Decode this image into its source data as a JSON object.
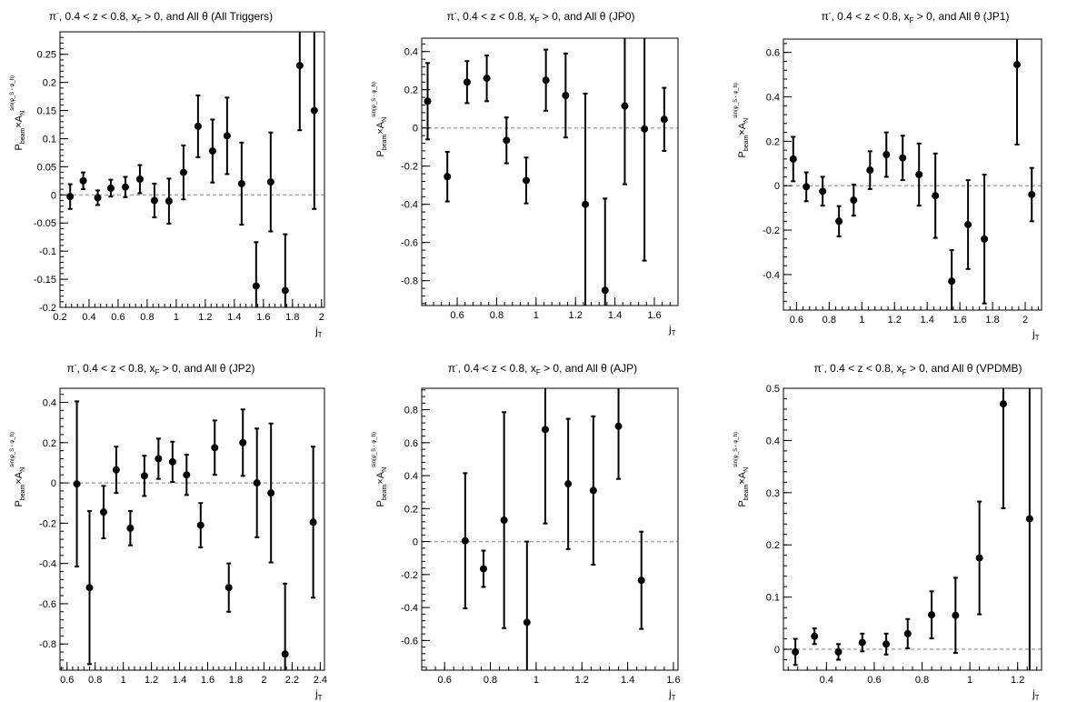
{
  "chart_data": [
    {
      "type": "scatter",
      "title": "π⁻, 0.4 < z < 0.8, x_F > 0, and All θ (All Triggers)",
      "title_parts": {
        "particle": "π",
        "sup": "-",
        "mid": ", 0.4 < z < 0.8, x",
        "sub": "F",
        "tail": " > 0, and All θ (All Triggers)"
      },
      "xlabel": {
        "main": "j",
        "sub": "T"
      },
      "ylabel": {
        "main": "P",
        "sub": "beam",
        "mid": "×A",
        "sub2": "N",
        "sup": "sin(φ_S - φ_h)"
      },
      "xlim": [
        0.2,
        2.02
      ],
      "ylim": [
        -0.2,
        0.29
      ],
      "xticks": [
        0.2,
        0.4,
        0.6,
        0.8,
        1,
        1.2,
        1.4,
        1.6,
        1.8,
        2
      ],
      "xtick_labels": [
        "0.2",
        "0.4",
        "0.6",
        "0.8",
        "1",
        "1.2",
        "1.4",
        "1.6",
        "1.8",
        "2"
      ],
      "yticks": [
        -0.2,
        -0.15,
        -0.1,
        -0.05,
        0,
        0.05,
        0.1,
        0.15,
        0.2,
        0.25
      ],
      "ytick_labels": [
        "-0.2",
        "-0.15",
        "-0.1",
        "-0.05",
        "0",
        "0.05",
        "0.1",
        "0.15",
        "0.2",
        "0.25"
      ],
      "points": [
        {
          "x": 0.27,
          "y": -0.003,
          "err": 0.022
        },
        {
          "x": 0.36,
          "y": 0.025,
          "err": 0.015
        },
        {
          "x": 0.46,
          "y": -0.005,
          "err": 0.013
        },
        {
          "x": 0.55,
          "y": 0.012,
          "err": 0.015
        },
        {
          "x": 0.65,
          "y": 0.014,
          "err": 0.018
        },
        {
          "x": 0.75,
          "y": 0.028,
          "err": 0.025
        },
        {
          "x": 0.85,
          "y": -0.01,
          "err": 0.03
        },
        {
          "x": 0.95,
          "y": -0.011,
          "err": 0.04
        },
        {
          "x": 1.05,
          "y": 0.04,
          "err": 0.048
        },
        {
          "x": 1.15,
          "y": 0.122,
          "err": 0.055
        },
        {
          "x": 1.25,
          "y": 0.078,
          "err": 0.056
        },
        {
          "x": 1.35,
          "y": 0.105,
          "err": 0.068
        },
        {
          "x": 1.45,
          "y": 0.02,
          "err": 0.073
        },
        {
          "x": 1.55,
          "y": -0.162,
          "err": 0.078
        },
        {
          "x": 1.65,
          "y": 0.023,
          "err": 0.088
        },
        {
          "x": 1.75,
          "y": -0.17,
          "err": 0.1
        },
        {
          "x": 1.85,
          "y": 0.23,
          "err": 0.115
        },
        {
          "x": 1.95,
          "y": 0.15,
          "err": 0.175
        }
      ]
    },
    {
      "type": "scatter",
      "title": "π⁻, 0.4 < z < 0.8, x_F > 0, and All θ (JP0)",
      "title_parts": {
        "particle": "π",
        "sup": "-",
        "mid": ", 0.4 < z < 0.8, x",
        "sub": "F",
        "tail": " > 0, and All θ (JP0)"
      },
      "xlabel": {
        "main": "j",
        "sub": "T"
      },
      "ylabel": {
        "main": "P",
        "sub": "beam",
        "mid": "×A",
        "sub2": "N",
        "sup": "sin(φ_S - φ_h)"
      },
      "xlim": [
        0.42,
        1.72
      ],
      "ylim": [
        -0.93,
        0.47
      ],
      "xticks": [
        0.6,
        0.8,
        1,
        1.2,
        1.4,
        1.6
      ],
      "xtick_labels": [
        "0.6",
        "0.8",
        "1",
        "1.2",
        "1.4",
        "1.6"
      ],
      "yticks": [
        -0.8,
        -0.6,
        -0.4,
        -0.2,
        0,
        0.2,
        0.4
      ],
      "ytick_labels": [
        "-0.8",
        "-0.6",
        "-0.4",
        "-0.2",
        "0",
        "0.2",
        "0.4"
      ],
      "points": [
        {
          "x": 0.45,
          "y": 0.14,
          "err": 0.2
        },
        {
          "x": 0.55,
          "y": -0.255,
          "err": 0.13
        },
        {
          "x": 0.65,
          "y": 0.24,
          "err": 0.11
        },
        {
          "x": 0.75,
          "y": 0.26,
          "err": 0.12
        },
        {
          "x": 0.85,
          "y": -0.065,
          "err": 0.12
        },
        {
          "x": 0.95,
          "y": -0.275,
          "err": 0.12
        },
        {
          "x": 1.05,
          "y": 0.25,
          "err": 0.16
        },
        {
          "x": 1.15,
          "y": 0.17,
          "err": 0.22
        },
        {
          "x": 1.25,
          "y": -0.4,
          "err": 0.58
        },
        {
          "x": 1.35,
          "y": -0.85,
          "err": 0.48
        },
        {
          "x": 1.45,
          "y": 0.115,
          "err": 0.41
        },
        {
          "x": 1.55,
          "y": -0.005,
          "err": 0.69
        },
        {
          "x": 1.65,
          "y": 0.045,
          "err": 0.165
        }
      ]
    },
    {
      "type": "scatter",
      "title": "π⁻, 0.4 < z < 0.8, x_F > 0, and All θ (JP1)",
      "title_parts": {
        "particle": "π",
        "sup": "-",
        "mid": ", 0.4 < z < 0.8, x",
        "sub": "F",
        "tail": " > 0, and All θ (JP1)"
      },
      "xlabel": {
        "main": "j",
        "sub": "T"
      },
      "ylabel": {
        "main": "P",
        "sub": "beam",
        "mid": "×A",
        "sub2": "N",
        "sup": "sin(φ_S - φ_h)"
      },
      "xlim": [
        0.52,
        2.1
      ],
      "ylim": [
        -0.56,
        0.66
      ],
      "xticks": [
        0.6,
        0.8,
        1,
        1.2,
        1.4,
        1.6,
        1.8,
        2
      ],
      "xtick_labels": [
        "0.6",
        "0.8",
        "1",
        "1.2",
        "1.4",
        "1.6",
        "1.8",
        "2"
      ],
      "yticks": [
        -0.4,
        -0.2,
        0,
        0.2,
        0.4,
        0.6
      ],
      "ytick_labels": [
        "-0.4",
        "-0.2",
        "0",
        "0.2",
        "0.4",
        "0.6"
      ],
      "points": [
        {
          "x": 0.58,
          "y": 0.12,
          "err": 0.1
        },
        {
          "x": 0.66,
          "y": -0.005,
          "err": 0.065
        },
        {
          "x": 0.76,
          "y": -0.025,
          "err": 0.065
        },
        {
          "x": 0.86,
          "y": -0.16,
          "err": 0.068
        },
        {
          "x": 0.95,
          "y": -0.065,
          "err": 0.07
        },
        {
          "x": 1.05,
          "y": 0.07,
          "err": 0.085
        },
        {
          "x": 1.15,
          "y": 0.14,
          "err": 0.1
        },
        {
          "x": 1.25,
          "y": 0.125,
          "err": 0.1
        },
        {
          "x": 1.35,
          "y": 0.05,
          "err": 0.14
        },
        {
          "x": 1.45,
          "y": -0.045,
          "err": 0.19
        },
        {
          "x": 1.55,
          "y": -0.43,
          "err": 0.14
        },
        {
          "x": 1.65,
          "y": -0.175,
          "err": 0.2
        },
        {
          "x": 1.75,
          "y": -0.24,
          "err": 0.29
        },
        {
          "x": 1.95,
          "y": 0.545,
          "err": 0.36
        },
        {
          "x": 2.04,
          "y": -0.04,
          "err": 0.12
        }
      ]
    },
    {
      "type": "scatter",
      "title": "π⁻, 0.4 < z < 0.8, x_F > 0, and All θ (JP2)",
      "title_parts": {
        "particle": "π",
        "sup": "-",
        "mid": ", 0.4 < z < 0.8, x",
        "sub": "F",
        "tail": " > 0, and All θ (JP2)"
      },
      "xlabel": {
        "main": "j",
        "sub": "T"
      },
      "ylabel": {
        "main": "P",
        "sub": "beam",
        "mid": "×A",
        "sub2": "N",
        "sup": "sin(φ_S - φ_h)"
      },
      "xlim": [
        0.55,
        2.43
      ],
      "ylim": [
        -0.93,
        0.47
      ],
      "xticks": [
        0.6,
        0.8,
        1,
        1.2,
        1.4,
        1.6,
        1.8,
        2,
        2.2,
        2.4
      ],
      "xtick_labels": [
        "0.6",
        "0.8",
        "1",
        "1.2",
        "1.4",
        "1.6",
        "1.8",
        "2",
        "2.2",
        "2.4"
      ],
      "yticks": [
        -0.8,
        -0.6,
        -0.4,
        -0.2,
        0,
        0.2,
        0.4
      ],
      "ytick_labels": [
        "-0.8",
        "-0.6",
        "-0.4",
        "-0.2",
        "0",
        "0.2",
        "0.4"
      ],
      "points": [
        {
          "x": 0.67,
          "y": -0.005,
          "err": 0.41
        },
        {
          "x": 0.76,
          "y": -0.52,
          "err": 0.38
        },
        {
          "x": 0.86,
          "y": -0.145,
          "err": 0.13
        },
        {
          "x": 0.95,
          "y": 0.065,
          "err": 0.115
        },
        {
          "x": 1.05,
          "y": -0.225,
          "err": 0.085
        },
        {
          "x": 1.15,
          "y": 0.035,
          "err": 0.1
        },
        {
          "x": 1.25,
          "y": 0.12,
          "err": 0.1
        },
        {
          "x": 1.35,
          "y": 0.105,
          "err": 0.1
        },
        {
          "x": 1.45,
          "y": 0.04,
          "err": 0.1
        },
        {
          "x": 1.55,
          "y": -0.21,
          "err": 0.11
        },
        {
          "x": 1.65,
          "y": 0.175,
          "err": 0.135
        },
        {
          "x": 1.75,
          "y": -0.52,
          "err": 0.12
        },
        {
          "x": 1.85,
          "y": 0.2,
          "err": 0.165
        },
        {
          "x": 1.95,
          "y": 0.0,
          "err": 0.27
        },
        {
          "x": 2.05,
          "y": -0.05,
          "err": 0.345
        },
        {
          "x": 2.15,
          "y": -0.85,
          "err": 0.35
        },
        {
          "x": 2.35,
          "y": -0.195,
          "err": 0.375
        }
      ]
    },
    {
      "type": "scatter",
      "title": "π⁻, 0.4 < z < 0.8, x_F > 0, and All θ (AJP)",
      "title_parts": {
        "particle": "π",
        "sup": "-",
        "mid": ", 0.4 < z < 0.8, x",
        "sub": "F",
        "tail": " > 0, and All θ (AJP)"
      },
      "xlabel": {
        "main": "j",
        "sub": "T"
      },
      "ylabel": {
        "main": "P",
        "sub": "beam",
        "mid": "×A",
        "sub2": "N",
        "sup": "sin(φ_S - φ_h)"
      },
      "xlim": [
        0.5,
        1.62
      ],
      "ylim": [
        -0.78,
        0.93
      ],
      "xticks": [
        0.6,
        0.8,
        1,
        1.2,
        1.4,
        1.6
      ],
      "xtick_labels": [
        "0.6",
        "0.8",
        "1",
        "1.2",
        "1.4",
        "1.6"
      ],
      "yticks": [
        -0.6,
        -0.4,
        -0.2,
        0,
        0.2,
        0.4,
        0.6,
        0.8
      ],
      "ytick_labels": [
        "-0.6",
        "-0.4",
        "-0.2",
        "0",
        "0.2",
        "0.4",
        "0.6",
        "0.8"
      ],
      "points": [
        {
          "x": 0.69,
          "y": 0.005,
          "err": 0.41
        },
        {
          "x": 0.77,
          "y": -0.165,
          "err": 0.11
        },
        {
          "x": 0.86,
          "y": 0.13,
          "err": 0.655
        },
        {
          "x": 0.96,
          "y": -0.49,
          "err": 0.49
        },
        {
          "x": 1.04,
          "y": 0.68,
          "err": 0.57
        },
        {
          "x": 1.14,
          "y": 0.35,
          "err": 0.395
        },
        {
          "x": 1.25,
          "y": 0.31,
          "err": 0.45
        },
        {
          "x": 1.36,
          "y": 0.7,
          "err": 0.32
        },
        {
          "x": 1.46,
          "y": -0.235,
          "err": 0.295
        }
      ]
    },
    {
      "type": "scatter",
      "title": "π⁻, 0.4 < z < 0.8, x_F > 0, and All θ (VPDMB)",
      "title_parts": {
        "particle": "π",
        "sup": "-",
        "mid": ", 0.4 < z < 0.8, x",
        "sub": "F",
        "tail": " > 0, and All θ (VPDMB)"
      },
      "xlabel": {
        "main": "j",
        "sub": "T"
      },
      "ylabel": {
        "main": "P",
        "sub": "beam",
        "mid": "×A",
        "sub2": "N",
        "sup": "sin(φ_S - φ_h)"
      },
      "xlim": [
        0.22,
        1.3
      ],
      "ylim": [
        -0.04,
        0.5
      ],
      "xticks": [
        0.4,
        0.6,
        0.8,
        1,
        1.2
      ],
      "xtick_labels": [
        "0.4",
        "0.6",
        "0.8",
        "1",
        "1.2"
      ],
      "yticks": [
        0,
        0.1,
        0.2,
        0.3,
        0.4,
        0.5
      ],
      "ytick_labels": [
        "0",
        "0.1",
        "0.2",
        "0.3",
        "0.4",
        "0.5"
      ],
      "points": [
        {
          "x": 0.27,
          "y": -0.005,
          "err": 0.025
        },
        {
          "x": 0.35,
          "y": 0.025,
          "err": 0.015
        },
        {
          "x": 0.45,
          "y": -0.005,
          "err": 0.015
        },
        {
          "x": 0.55,
          "y": 0.013,
          "err": 0.017
        },
        {
          "x": 0.65,
          "y": 0.01,
          "err": 0.02
        },
        {
          "x": 0.74,
          "y": 0.03,
          "err": 0.028
        },
        {
          "x": 0.84,
          "y": 0.066,
          "err": 0.045
        },
        {
          "x": 0.94,
          "y": 0.065,
          "err": 0.072
        },
        {
          "x": 1.04,
          "y": 0.175,
          "err": 0.108
        },
        {
          "x": 1.14,
          "y": 0.47,
          "err": 0.2
        },
        {
          "x": 1.25,
          "y": 0.25,
          "err": 0.3
        }
      ]
    }
  ]
}
